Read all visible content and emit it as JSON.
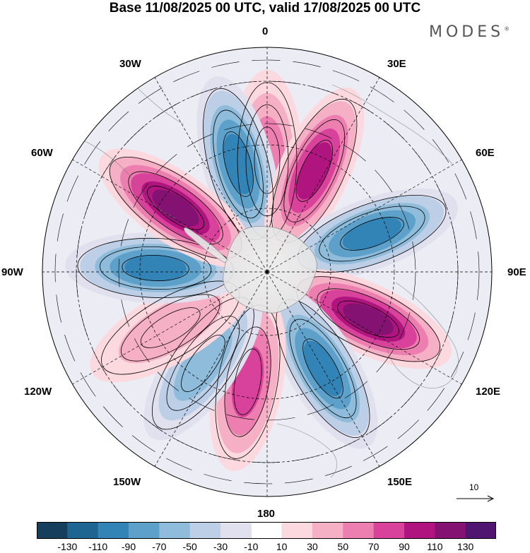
{
  "title": "Base 11/08/2025 00 UTC, valid 17/08/2025 00 UTC",
  "brand": "MODES",
  "brand_mark": "®",
  "map": {
    "projection": "south polar stereographic",
    "longitude_labels": [
      "0",
      "30E",
      "60E",
      "90E",
      "120E",
      "150E",
      "180",
      "150W",
      "120W",
      "90W",
      "60W",
      "30W"
    ],
    "anomaly_centers": [
      {
        "id": "pos-a",
        "lon_deg": 0,
        "sign": "positive",
        "value": 70
      },
      {
        "id": "neg-a",
        "lon_deg": 345,
        "sign": "negative",
        "value": -110
      },
      {
        "id": "pos-b",
        "lon_deg": 25,
        "sign": "positive",
        "value": 110
      },
      {
        "id": "neg-b",
        "lon_deg": 70,
        "sign": "negative",
        "value": -110
      },
      {
        "id": "pos-c",
        "lon_deg": 115,
        "sign": "positive",
        "value": 130
      },
      {
        "id": "neg-c",
        "lon_deg": 150,
        "sign": "negative",
        "value": -110
      },
      {
        "id": "pos-d",
        "lon_deg": 190,
        "sign": "positive",
        "value": 90
      },
      {
        "id": "neg-d",
        "lon_deg": 215,
        "sign": "negative",
        "value": -70
      },
      {
        "id": "pos-e",
        "lon_deg": 240,
        "sign": "positive",
        "value": 50
      },
      {
        "id": "neg-e",
        "lon_deg": 272,
        "sign": "negative",
        "value": -110
      },
      {
        "id": "pos-f",
        "lon_deg": 305,
        "sign": "positive",
        "value": 130
      }
    ],
    "vector_reference": {
      "label": "10",
      "value": 10
    }
  },
  "colorbar": {
    "tick_labels": [
      "-130",
      "-110",
      "-90",
      "-70",
      "-50",
      "-30",
      "-10",
      "10",
      "30",
      "50",
      "70",
      "90",
      "110",
      "130"
    ],
    "colors": [
      "#163f5e",
      "#1f6592",
      "#3384b6",
      "#5da1cb",
      "#8fbcda",
      "#bccfe6",
      "#e0e0ee",
      "#ffffff",
      "#fbd9df",
      "#f5b0c6",
      "#ec7fb0",
      "#d8429a",
      "#b0147f",
      "#841273",
      "#4f1570"
    ]
  }
}
